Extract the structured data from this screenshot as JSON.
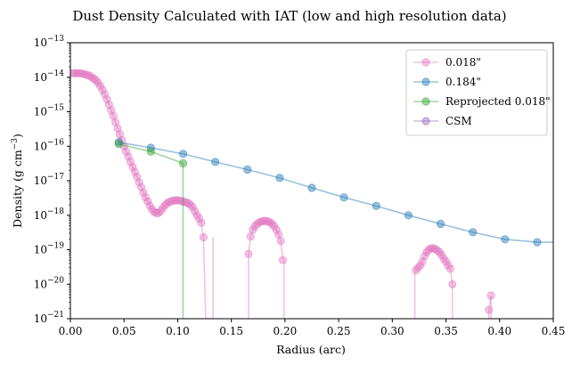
{
  "chart_data": {
    "type": "line",
    "title": "Dust Density Calculated with IAT (low and high resolution data)",
    "xlabel": "Radius (arc)",
    "ylabel": "Density (g cm",
    "ylabel_exp": "−3",
    "ylabel_close": ")",
    "xlim": [
      0,
      0.45
    ],
    "ylim": [
      1e-21,
      1e-13
    ],
    "yscale": "log",
    "grid": false,
    "legend_position": "top-right",
    "x_ticks": [
      {
        "value": 0.0,
        "label": "0.00"
      },
      {
        "value": 0.05,
        "label": "0.05"
      },
      {
        "value": 0.1,
        "label": "0.10"
      },
      {
        "value": 0.15,
        "label": "0.15"
      },
      {
        "value": 0.2,
        "label": "0.20"
      },
      {
        "value": 0.25,
        "label": "0.25"
      },
      {
        "value": 0.3,
        "label": "0.30"
      },
      {
        "value": 0.35,
        "label": "0.35"
      },
      {
        "value": 0.4,
        "label": "0.40"
      },
      {
        "value": 0.45,
        "label": "0.45"
      }
    ],
    "y_ticks": [
      {
        "exp": -21,
        "base": "10",
        "sup": "−21"
      },
      {
        "exp": -20,
        "base": "10",
        "sup": "−20"
      },
      {
        "exp": -19,
        "base": "10",
        "sup": "−19"
      },
      {
        "exp": -18,
        "base": "10",
        "sup": "−18"
      },
      {
        "exp": -17,
        "base": "10",
        "sup": "−17"
      },
      {
        "exp": -16,
        "base": "10",
        "sup": "−16"
      },
      {
        "exp": -15,
        "base": "10",
        "sup": "−15"
      },
      {
        "exp": -14,
        "base": "10",
        "sup": "−14"
      },
      {
        "exp": -13,
        "base": "10",
        "sup": "−13"
      }
    ],
    "series": [
      {
        "name": "0.018\"",
        "color": "#e377c2",
        "segments": [
          {
            "x": [
              0.002,
              0.004,
              0.006,
              0.008,
              0.01,
              0.012,
              0.014,
              0.016,
              0.018,
              0.02,
              0.022,
              0.024,
              0.026,
              0.028,
              0.03,
              0.032,
              0.034,
              0.036,
              0.038,
              0.04,
              0.042,
              0.044,
              0.046,
              0.048,
              0.05,
              0.052,
              0.054,
              0.056,
              0.058,
              0.06,
              0.062,
              0.064,
              0.066,
              0.068,
              0.07,
              0.072,
              0.074,
              0.076,
              0.078,
              0.08,
              0.082,
              0.084,
              0.086,
              0.088,
              0.09,
              0.092,
              0.094,
              0.096,
              0.098,
              0.1,
              0.102,
              0.104,
              0.106,
              0.108,
              0.11,
              0.112,
              0.114,
              0.116,
              0.118,
              0.12,
              0.122,
              0.124,
              0.126,
              0.128,
              0.13,
              0.132
            ],
            "y": [
              1.3e-14,
              1.3e-14,
              1.3e-14,
              1.3e-14,
              1.3e-14,
              1.25e-14,
              1.2e-14,
              1.15e-14,
              1.1e-14,
              1e-14,
              9e-15,
              8e-15,
              6.8e-15,
              5.5e-15,
              4.3e-15,
              3.2e-15,
              2.3e-15,
              1.6e-15,
              1.1e-15,
              7.5e-16,
              5e-16,
              3.3e-16,
              2.2e-16,
              1.5e-16,
              1e-16,
              7e-17,
              5e-17,
              3.5e-17,
              2.5e-17,
              1.8e-17,
              1.3e-17,
              9e-18,
              6.5e-18,
              4.5e-18,
              3.3e-18,
              2.5e-18,
              1.9e-18,
              1.5e-18,
              1.25e-18,
              1.15e-18,
              1.15e-18,
              1.3e-18,
              1.6e-18,
              1.9e-18,
              2.2e-18,
              2.4e-18,
              2.55e-18,
              2.65e-18,
              2.7e-18,
              2.7e-18,
              2.65e-18,
              2.55e-18,
              2.45e-18,
              2.35e-18,
              2.2e-18,
              2e-18,
              1.7e-18,
              1.3e-18,
              1e-18,
              8e-19,
              6e-19,
              2.3e-19,
              1e-21,
              1e-21,
              1e-21,
              1e-21
            ]
          },
          {
            "x": [
              0.166,
              0.168,
              0.17,
              0.172,
              0.174,
              0.176,
              0.178,
              0.18,
              0.182,
              0.184,
              0.186,
              0.188,
              0.19,
              0.192,
              0.194,
              0.196,
              0.198
            ],
            "y": [
              7.5e-20,
              2.4e-19,
              3.8e-19,
              4.8e-19,
              5.6e-19,
              6.2e-19,
              6.6e-19,
              6.8e-19,
              6.8e-19,
              6.6e-19,
              6.2e-19,
              5.6e-19,
              4.8e-19,
              3.8e-19,
              2.8e-19,
              1.8e-19,
              5e-20
            ]
          },
          {
            "x": [
              0.322,
              0.324,
              0.326,
              0.328,
              0.33,
              0.332,
              0.334,
              0.336,
              0.338,
              0.34,
              0.342,
              0.344,
              0.346,
              0.348,
              0.35,
              0.352,
              0.354,
              0.356
            ],
            "y": [
              2.5e-20,
              3e-20,
              3.5e-20,
              4.5e-20,
              6.5e-20,
              8.5e-20,
              1e-19,
              1.1e-19,
              1.1e-19,
              1.05e-19,
              9.5e-20,
              8.5e-20,
              7e-20,
              5.5e-20,
              4.5e-20,
              3.5e-20,
              2.8e-20,
              1e-20
            ]
          },
          {
            "x": [
              0.39,
              0.392
            ],
            "y": [
              1.8e-21,
              4.7e-21
            ]
          }
        ],
        "drops": [
          0.133,
          0.166,
          0.199,
          0.321,
          0.356,
          0.39,
          0.392
        ]
      },
      {
        "name": "0.184\"",
        "color": "#1f77b4",
        "x": [
          0.045,
          0.075,
          0.105,
          0.135,
          0.165,
          0.195,
          0.225,
          0.255,
          0.285,
          0.315,
          0.345,
          0.375,
          0.405,
          0.435
        ],
        "y": [
          1.3e-16,
          9e-17,
          6e-17,
          3.5e-17,
          2.1e-17,
          1.2e-17,
          6.2e-18,
          3.3e-18,
          1.85e-18,
          1e-18,
          5.6e-19,
          3.2e-19,
          2e-19,
          1.65e-19
        ],
        "line_extends_to": [
          0.45,
          1.65e-19
        ]
      },
      {
        "name": "Reprojected 0.018\"",
        "color": "#2ca02c",
        "x": [
          0.045,
          0.075,
          0.105
        ],
        "y": [
          1.15e-16,
          7e-17,
          3.2e-17
        ],
        "drops": [
          0.105
        ]
      },
      {
        "name": "CSM",
        "color": "#9467bd",
        "x": [],
        "y": []
      }
    ]
  }
}
